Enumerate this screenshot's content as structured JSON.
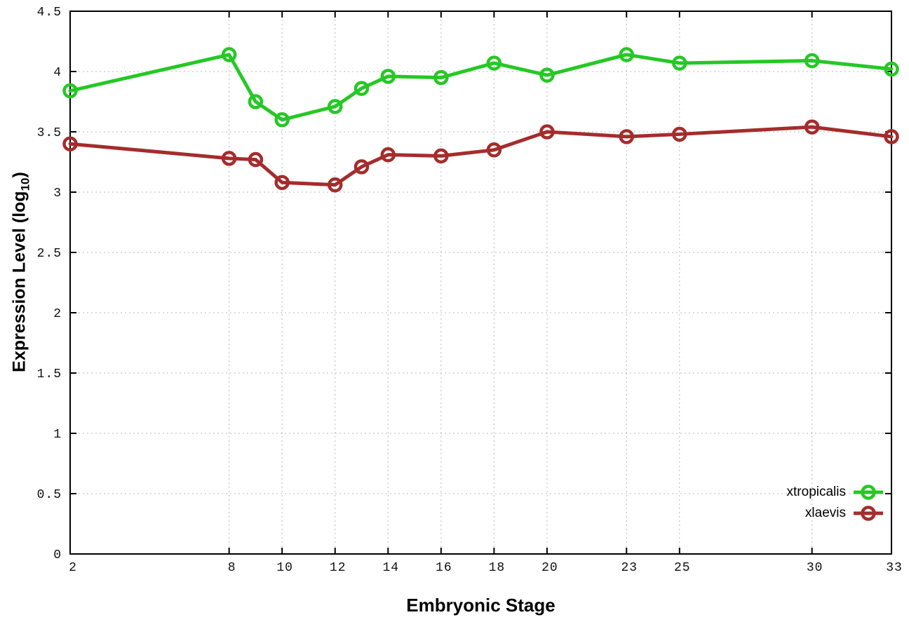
{
  "axes": {
    "xlabel": "Embryonic Stage",
    "ylabel_prefix": "Expression Level (log",
    "ylabel_sub": "10",
    "ylabel_suffix": ")"
  },
  "chart_data": {
    "type": "line",
    "title": "",
    "xlabel": "Embryonic Stage",
    "ylabel": "Expression Level (log10)",
    "xlim": [
      2,
      33
    ],
    "ylim": [
      0,
      4.5
    ],
    "grid": true,
    "legend_position": "bottom-right",
    "x_ticks": [
      2,
      8,
      10,
      12,
      14,
      16,
      18,
      20,
      23,
      25,
      30,
      33
    ],
    "x_tick_labels": [
      "2",
      "8",
      "10",
      "12",
      "14",
      "16",
      "18",
      "20",
      "23",
      "25",
      "30",
      "33"
    ],
    "y_ticks": [
      0,
      0.5,
      1,
      1.5,
      2,
      2.5,
      3,
      3.5,
      4,
      4.5
    ],
    "y_tick_labels": [
      "0",
      "0.5",
      "1",
      "1.5",
      "2",
      "2.5",
      "3",
      "3.5",
      "4",
      "4.5"
    ],
    "x": [
      2,
      8,
      9,
      10,
      12,
      13,
      14,
      16,
      18,
      20,
      23,
      25,
      30,
      33
    ],
    "series": [
      {
        "name": "xtropicalis",
        "color": "#25c825",
        "values": [
          3.84,
          4.14,
          3.75,
          3.6,
          3.71,
          3.86,
          3.96,
          3.95,
          4.07,
          3.97,
          4.14,
          4.07,
          4.09,
          4.02
        ]
      },
      {
        "name": "xlaevis",
        "color": "#a52c2c",
        "values": [
          3.4,
          3.28,
          3.27,
          3.08,
          3.06,
          3.21,
          3.31,
          3.3,
          3.35,
          3.5,
          3.46,
          3.48,
          3.54,
          3.46
        ]
      }
    ]
  },
  "colors": {
    "background": "#ffffff",
    "axis": "#000000",
    "grid": "#b8b8b8",
    "tick_text": "#111111"
  }
}
